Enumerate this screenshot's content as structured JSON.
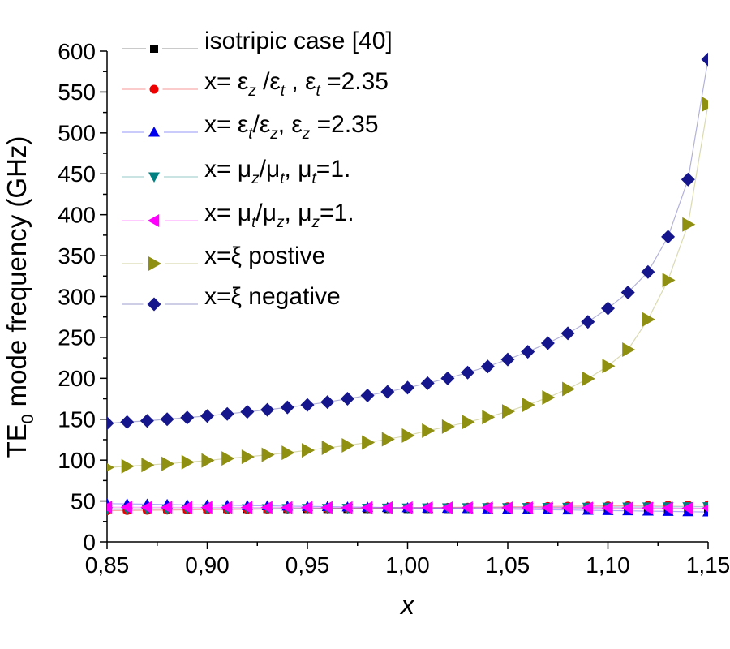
{
  "figure": {
    "background": "#ffffff"
  },
  "chart_data": {
    "type": "scatter",
    "title": "",
    "xlabel": "x",
    "ylabel_segments": [
      {
        "t": "TE"
      },
      {
        "sub": "0"
      },
      {
        "t": " mode frequency (GHz)"
      }
    ],
    "x_range": [
      0.85,
      1.15
    ],
    "y_range": [
      0,
      600
    ],
    "grid": false,
    "legend_position": "top-left",
    "x_major_values": [
      0.85,
      0.9,
      0.95,
      1.0,
      1.05,
      1.1,
      1.15
    ],
    "x_tick_labels": [
      "0,85",
      "0,90",
      "0,95",
      "1,00",
      "1,05",
      "1,10",
      "1,15"
    ],
    "x_minor_values": [
      0.875,
      0.925,
      0.975,
      1.025,
      1.075,
      1.125
    ],
    "y_major_values": [
      0,
      50,
      100,
      150,
      200,
      250,
      300,
      350,
      400,
      450,
      500,
      550,
      600
    ],
    "y_tick_labels": [
      "0",
      "50",
      "100",
      "150",
      "200",
      "250",
      "300",
      "350",
      "400",
      "450",
      "500",
      "550",
      "600"
    ],
    "y_minor_values": [
      25,
      75,
      125,
      175,
      225,
      275,
      325,
      375,
      425,
      475,
      525,
      575
    ],
    "x": [
      0.85,
      0.86,
      0.87,
      0.88,
      0.89,
      0.9,
      0.91,
      0.92,
      0.93,
      0.94,
      0.95,
      0.96,
      0.97,
      0.98,
      0.99,
      1.0,
      1.01,
      1.02,
      1.03,
      1.04,
      1.05,
      1.06,
      1.07,
      1.08,
      1.09,
      1.1,
      1.11,
      1.12,
      1.13,
      1.14,
      1.15
    ],
    "series": [
      {
        "id": "isotropic-case",
        "marker": "square",
        "color": "#000000",
        "size": 5,
        "label_segments": [
          {
            "t": "isotripic case [40]"
          }
        ],
        "values": [
          40.3,
          40.3,
          40.3,
          40.3,
          40.3,
          40.3,
          40.3,
          40.3,
          40.3,
          40.3,
          40.3,
          40.3,
          40.3,
          40.3,
          40.3,
          40.3,
          40.3,
          40.3,
          40.3,
          40.3,
          40.3,
          40.3,
          40.3,
          40.3,
          40.3,
          40.3,
          40.3,
          40.3,
          40.3,
          40.3,
          40.3
        ]
      },
      {
        "id": "eps-z-over-eps-t",
        "marker": "circle",
        "color": "#ee0000",
        "size": 5.5,
        "label_segments": [
          {
            "t": "x= ε"
          },
          {
            "sub": "z",
            "it": 1
          },
          {
            "t": " /ε"
          },
          {
            "sub": "t",
            "it": 1
          },
          {
            "t": " , ε"
          },
          {
            "sub": "t",
            "it": 1
          },
          {
            "t": " =2.35"
          }
        ],
        "values": [
          38.2,
          38.4,
          38.7,
          38.9,
          39.1,
          39.4,
          39.6,
          39.8,
          40.1,
          40.3,
          40.5,
          40.8,
          41.0,
          41.2,
          41.5,
          41.7,
          41.9,
          42.2,
          42.4,
          42.6,
          42.9,
          43.1,
          43.3,
          43.6,
          43.8,
          44.0,
          44.3,
          44.5,
          44.7,
          45.0,
          45.2
        ]
      },
      {
        "id": "eps-t-over-eps-z",
        "marker": "triangle-up",
        "color": "#0000ee",
        "size": 7,
        "label_segments": [
          {
            "t": "x= ε"
          },
          {
            "sub": "t",
            "it": 1
          },
          {
            "t": "/ε"
          },
          {
            "sub": "z",
            "it": 1
          },
          {
            "t": ", ε"
          },
          {
            "sub": "z",
            "it": 1
          },
          {
            "t": " =2.35"
          }
        ],
        "values": [
          46.8,
          46.5,
          46.1,
          45.8,
          45.4,
          45.1,
          44.8,
          44.4,
          44.1,
          43.7,
          43.4,
          43.1,
          42.7,
          42.4,
          42.0,
          41.7,
          41.4,
          41.0,
          40.7,
          40.3,
          40.0,
          39.7,
          39.3,
          39.0,
          38.6,
          38.3,
          38.0,
          37.6,
          37.3,
          36.9,
          36.6
        ]
      },
      {
        "id": "mu-z-over-mu-t",
        "marker": "triangle-down",
        "color": "#008080",
        "size": 7,
        "label_segments": [
          {
            "t": "x= μ"
          },
          {
            "sub": "z",
            "it": 1
          },
          {
            "t": "/μ"
          },
          {
            "sub": "t",
            "it": 1
          },
          {
            "t": ", μ"
          },
          {
            "sub": "t",
            "it": 1
          },
          {
            "t": "=1."
          }
        ],
        "values": [
          39.8,
          39.9,
          40.0,
          40.1,
          40.2,
          40.4,
          40.5,
          40.6,
          40.7,
          40.8,
          40.9,
          41.0,
          41.1,
          41.2,
          41.3,
          41.5,
          41.6,
          41.7,
          41.8,
          41.9,
          42.0,
          42.1,
          42.2,
          42.3,
          42.4,
          42.6,
          42.7,
          42.8,
          42.9,
          43.0,
          43.1
        ]
      },
      {
        "id": "mu-t-over-mu-z",
        "marker": "triangle-left",
        "color": "#ff00ff",
        "size": 8,
        "label_segments": [
          {
            "t": "x= μ"
          },
          {
            "sub": "t",
            "it": 1
          },
          {
            "t": "/μ"
          },
          {
            "sub": "z",
            "it": 1
          },
          {
            "t": ", μ"
          },
          {
            "sub": "z",
            "it": 1
          },
          {
            "t": "=1."
          }
        ],
        "values": [
          42.4,
          42.4,
          42.3,
          42.3,
          42.2,
          42.2,
          42.2,
          42.1,
          42.1,
          42.0,
          42.0,
          42.0,
          41.9,
          41.9,
          41.8,
          41.8,
          41.8,
          41.7,
          41.7,
          41.6,
          41.6,
          41.6,
          41.5,
          41.5,
          41.4,
          41.4,
          41.4,
          41.3,
          41.3,
          41.2,
          41.2
        ]
      },
      {
        "id": "xi-positive",
        "marker": "triangle-right",
        "color": "#8f8f12",
        "size": 9,
        "label_segments": [
          {
            "t": "x=ξ postive"
          }
        ],
        "values": [
          91,
          92.5,
          94,
          95.5,
          97.5,
          99.5,
          102,
          104,
          106.5,
          109,
          112,
          115,
          118,
          121.5,
          125.5,
          130,
          136,
          141,
          146.5,
          152.5,
          159.5,
          167.5,
          176.5,
          187,
          199.5,
          215,
          235,
          272,
          320,
          388,
          535
        ]
      },
      {
        "id": "xi-negative",
        "marker": "diamond",
        "color": "#16168c",
        "size": 8.5,
        "label_segments": [
          {
            "t": "x=ξ negative"
          }
        ],
        "values": [
          145,
          146.5,
          148,
          150,
          152,
          154,
          156.5,
          159,
          161.5,
          164.5,
          167.5,
          171,
          175,
          179,
          183.5,
          188.5,
          194,
          200,
          207,
          214.5,
          223,
          232.5,
          243,
          255,
          269,
          285.5,
          305,
          330,
          373,
          443,
          590
        ]
      }
    ]
  }
}
